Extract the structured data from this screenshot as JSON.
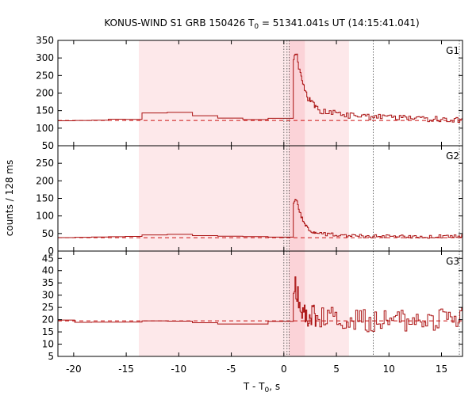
{
  "chart_data": {
    "type": "line",
    "title": {
      "prefix": "KONUS-WIND S1 GRB 150426 T",
      "sub": "0",
      "suffix": " = 51341.041s UT (14:15:41.041)"
    },
    "xlabel": {
      "prefix": "T - T",
      "sub": "0",
      "suffix": ", s"
    },
    "ylabel": "counts / 128 ms",
    "xlim": [
      -21.5,
      17
    ],
    "xticks": [
      -20,
      -15,
      -10,
      -5,
      0,
      5,
      10,
      15
    ],
    "shaded_intervals": [
      {
        "from": -13.8,
        "to": 6.2,
        "color": "#fde8ea"
      },
      {
        "from": 0.5,
        "to": 2.0,
        "color": "#fbd3d8"
      }
    ],
    "vertical_lines": [
      0,
      0.3,
      0.5,
      8.5,
      16.7
    ],
    "line_color": "#aa1111",
    "background_color": "#cc1111",
    "panels": [
      {
        "name": "G1",
        "ylim": [
          50,
          350
        ],
        "yticks": [
          50,
          100,
          150,
          200,
          250,
          300,
          350
        ],
        "background": 122,
        "anchors": [
          [
            -21.5,
            122
          ],
          [
            -20,
            121
          ],
          [
            -17,
            123
          ],
          [
            -16,
            125
          ],
          [
            -14,
            126
          ],
          [
            -13.8,
            143
          ],
          [
            -10,
            145
          ],
          [
            -7.5,
            135
          ],
          [
            -5,
            128
          ],
          [
            -2,
            124
          ],
          [
            -0.2,
            128
          ],
          [
            -0.15,
            155
          ],
          [
            0,
            175
          ],
          [
            0.1,
            240
          ],
          [
            0.2,
            300
          ],
          [
            0.3,
            315
          ],
          [
            0.4,
            270
          ],
          [
            0.5,
            255
          ],
          [
            0.7,
            260
          ],
          [
            0.9,
            285
          ],
          [
            1.0,
            300
          ],
          [
            1.2,
            320
          ],
          [
            1.4,
            280
          ],
          [
            1.6,
            250
          ],
          [
            1.8,
            230
          ],
          [
            2.0,
            205
          ],
          [
            2.3,
            185
          ],
          [
            2.6,
            175
          ],
          [
            3.0,
            160
          ],
          [
            3.5,
            150
          ],
          [
            4.0,
            145
          ],
          [
            5.0,
            142
          ],
          [
            6.0,
            138
          ],
          [
            7.0,
            135
          ],
          [
            8.0,
            132
          ],
          [
            10,
            130
          ],
          [
            12,
            128
          ],
          [
            14,
            126
          ],
          [
            17,
            124
          ]
        ],
        "noise": 9
      },
      {
        "name": "G2",
        "ylim": [
          0,
          300
        ],
        "yticks": [
          0,
          50,
          100,
          150,
          200,
          250
        ],
        "background": 38,
        "anchors": [
          [
            -21.5,
            38
          ],
          [
            -20,
            39
          ],
          [
            -17,
            40
          ],
          [
            -14,
            42
          ],
          [
            -13.8,
            45
          ],
          [
            -10,
            48
          ],
          [
            -7.5,
            44
          ],
          [
            -5,
            42
          ],
          [
            -2,
            41
          ],
          [
            -0.2,
            40
          ],
          [
            -0.15,
            65
          ],
          [
            0,
            110
          ],
          [
            0.1,
            200
          ],
          [
            0.2,
            245
          ],
          [
            0.3,
            200
          ],
          [
            0.4,
            140
          ],
          [
            0.5,
            100
          ],
          [
            0.7,
            105
          ],
          [
            0.9,
            130
          ],
          [
            1.1,
            150
          ],
          [
            1.3,
            140
          ],
          [
            1.5,
            110
          ],
          [
            1.8,
            90
          ],
          [
            2.0,
            75
          ],
          [
            2.3,
            65
          ],
          [
            2.6,
            55
          ],
          [
            3.0,
            52
          ],
          [
            4.0,
            48
          ],
          [
            5.0,
            46
          ],
          [
            6.0,
            44
          ],
          [
            7.0,
            43
          ],
          [
            8.0,
            42
          ],
          [
            10,
            42
          ],
          [
            12,
            41
          ],
          [
            14,
            41
          ],
          [
            17,
            42
          ]
        ],
        "noise": 5
      },
      {
        "name": "G3",
        "ylim": [
          5,
          48
        ],
        "yticks": [
          5,
          10,
          15,
          20,
          25,
          30,
          35,
          40,
          45
        ],
        "background": 19.5,
        "anchors": [
          [
            -21.5,
            20
          ],
          [
            -20,
            19
          ],
          [
            -17,
            18.5
          ],
          [
            -14,
            19
          ],
          [
            -13.8,
            19.5
          ],
          [
            -10,
            19.5
          ],
          [
            -7.5,
            19
          ],
          [
            -5,
            18.5
          ],
          [
            -2,
            18.5
          ],
          [
            -0.2,
            19
          ],
          [
            -0.15,
            22
          ],
          [
            0,
            28
          ],
          [
            0.1,
            38
          ],
          [
            0.2,
            43
          ],
          [
            0.3,
            35
          ],
          [
            0.4,
            27
          ],
          [
            0.5,
            25
          ],
          [
            0.7,
            30
          ],
          [
            0.9,
            35
          ],
          [
            1.1,
            33
          ],
          [
            1.3,
            31
          ],
          [
            1.5,
            27
          ],
          [
            1.8,
            24
          ],
          [
            2.0,
            22
          ],
          [
            2.5,
            21
          ],
          [
            3.0,
            21
          ],
          [
            5.0,
            20.5
          ],
          [
            8.0,
            20
          ],
          [
            12,
            20
          ],
          [
            17,
            20
          ]
        ],
        "noise": 5
      }
    ]
  }
}
